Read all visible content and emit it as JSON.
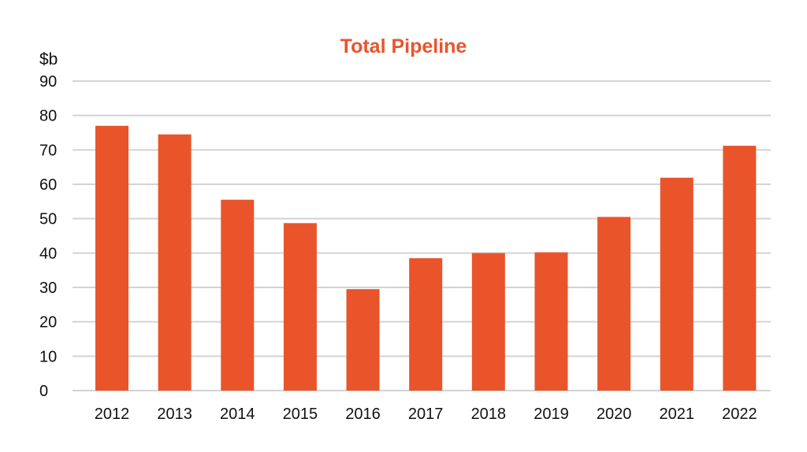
{
  "chart_data": {
    "type": "bar",
    "title": "Total Pipeline",
    "ylabel": "$b",
    "xlabel": "",
    "categories": [
      "2012",
      "2013",
      "2014",
      "2015",
      "2016",
      "2017",
      "2018",
      "2019",
      "2020",
      "2021",
      "2022"
    ],
    "values": [
      77,
      74.5,
      55.5,
      48.7,
      29.5,
      38.5,
      40,
      40.2,
      50.5,
      61.9,
      71.2
    ],
    "ylim": [
      0,
      90
    ],
    "yticks": [
      0,
      10,
      20,
      30,
      40,
      50,
      60,
      70,
      80,
      90
    ],
    "grid": true,
    "legend": "none",
    "colors": {
      "bar": "#E9542B",
      "title": "#E9542B",
      "grid": "#D3D3D3"
    }
  }
}
